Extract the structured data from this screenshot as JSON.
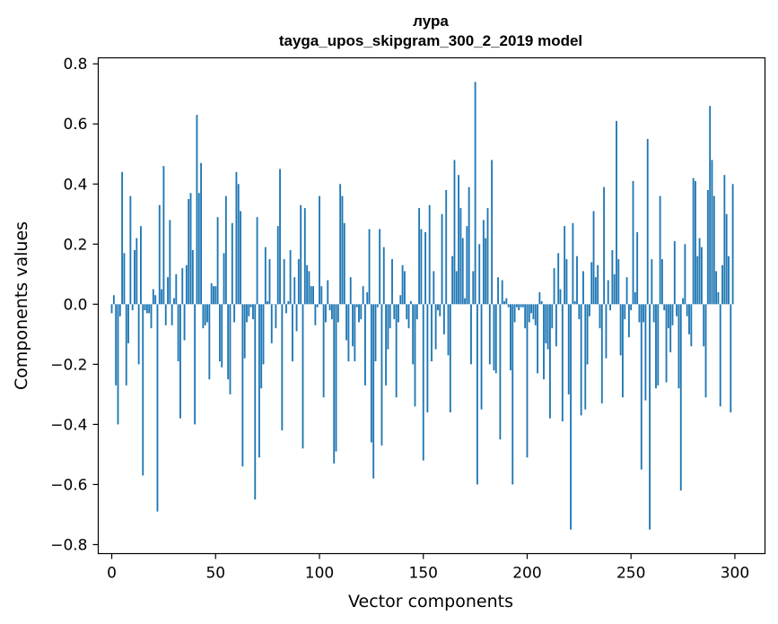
{
  "chart_data": {
    "type": "bar",
    "title": "лура",
    "subtitle": "tayga_upos_skipgram_300_2_2019 model",
    "xlabel": "Vector components",
    "ylabel": "Components values",
    "xlim": [
      -6.5,
      314.5
    ],
    "ylim": [
      -0.83,
      0.82
    ],
    "xticks": [
      0,
      50,
      100,
      150,
      200,
      250,
      300
    ],
    "xtick_labels": [
      "0",
      "50",
      "100",
      "150",
      "200",
      "250",
      "300"
    ],
    "yticks": [
      -0.8,
      -0.6,
      -0.4,
      -0.2,
      0.0,
      0.2,
      0.4,
      0.6,
      0.8
    ],
    "ytick_labels": [
      "−0.8",
      "−0.6",
      "−0.4",
      "−0.2",
      "0.0",
      "0.2",
      "0.4",
      "0.6",
      "0.8"
    ],
    "bar_color": "#1f77b4",
    "values": [
      -0.03,
      0.03,
      -0.27,
      -0.4,
      -0.04,
      0.44,
      0.17,
      -0.27,
      -0.13,
      0.36,
      -0.02,
      0.18,
      0.22,
      -0.2,
      0.26,
      -0.57,
      -0.02,
      -0.03,
      -0.03,
      -0.08,
      0.05,
      0.03,
      -0.69,
      0.33,
      0.05,
      0.46,
      -0.07,
      0.09,
      0.28,
      -0.07,
      0.02,
      0.1,
      -0.19,
      -0.38,
      0.12,
      -0.12,
      0.13,
      0.35,
      0.37,
      0.18,
      -0.4,
      0.63,
      0.37,
      0.47,
      -0.08,
      -0.07,
      -0.06,
      -0.25,
      0.07,
      0.06,
      0.06,
      0.29,
      -0.19,
      -0.21,
      0.17,
      0.36,
      -0.25,
      -0.3,
      0.27,
      -0.06,
      0.44,
      0.4,
      0.31,
      -0.54,
      -0.18,
      -0.06,
      -0.04,
      -0.01,
      -0.05,
      -0.65,
      0.29,
      -0.51,
      -0.28,
      -0.2,
      0.19,
      0.01,
      0.15,
      -0.13,
      0.0,
      -0.08,
      0.26,
      0.45,
      -0.42,
      0.15,
      -0.03,
      0.01,
      0.18,
      -0.19,
      0.09,
      -0.09,
      0.15,
      0.33,
      -0.48,
      0.32,
      0.13,
      0.11,
      0.06,
      0.06,
      -0.07,
      -0.01,
      0.36,
      0.06,
      -0.31,
      -0.06,
      0.08,
      -0.02,
      -0.05,
      -0.53,
      -0.49,
      -0.06,
      0.4,
      0.36,
      0.27,
      -0.12,
      -0.19,
      0.09,
      -0.14,
      -0.19,
      -0.01,
      -0.06,
      -0.05,
      0.06,
      -0.27,
      0.04,
      0.25,
      -0.46,
      -0.58,
      -0.19,
      -0.01,
      0.25,
      -0.47,
      0.19,
      -0.27,
      -0.15,
      -0.08,
      0.15,
      -0.05,
      -0.31,
      -0.06,
      0.03,
      0.13,
      0.11,
      -0.05,
      -0.08,
      0.01,
      -0.2,
      -0.34,
      -0.05,
      0.32,
      0.25,
      -0.52,
      0.24,
      -0.36,
      0.33,
      -0.19,
      0.11,
      -0.15,
      -0.02,
      -0.04,
      0.3,
      -0.1,
      0.38,
      -0.17,
      -0.36,
      0.16,
      0.48,
      0.11,
      0.43,
      0.32,
      0.22,
      0.02,
      0.26,
      0.39,
      -0.2,
      0.11,
      0.74,
      -0.6,
      0.2,
      -0.35,
      0.28,
      0.22,
      0.32,
      -0.2,
      0.48,
      -0.22,
      -0.23,
      0.09,
      -0.45,
      0.08,
      0.01,
      0.02,
      -0.01,
      -0.22,
      -0.6,
      -0.06,
      -0.01,
      -0.02,
      -0.01,
      -0.01,
      -0.08,
      -0.51,
      -0.06,
      -0.03,
      -0.05,
      -0.07,
      -0.23,
      0.04,
      0.01,
      -0.25,
      -0.13,
      -0.15,
      -0.38,
      -0.08,
      0.12,
      -0.14,
      0.17,
      0.05,
      -0.39,
      0.26,
      0.15,
      -0.3,
      -0.75,
      0.27,
      0.01,
      0.16,
      -0.05,
      -0.37,
      0.11,
      -0.35,
      -0.2,
      -0.04,
      0.14,
      0.31,
      0.09,
      0.13,
      -0.08,
      -0.33,
      0.39,
      -0.18,
      0.08,
      -0.02,
      0.18,
      0.1,
      0.61,
      0.15,
      -0.17,
      -0.31,
      -0.05,
      0.09,
      -0.11,
      -0.02,
      0.41,
      0.04,
      0.24,
      -0.06,
      -0.55,
      -0.06,
      -0.32,
      0.55,
      -0.75,
      0.15,
      -0.06,
      -0.28,
      -0.27,
      0.36,
      0.15,
      -0.02,
      -0.26,
      -0.08,
      -0.16,
      -0.07,
      0.21,
      -0.04,
      -0.28,
      -0.62,
      0.02,
      0.2,
      -0.04,
      -0.1,
      -0.14,
      0.42,
      0.41,
      0.16,
      0.22,
      0.19,
      -0.14,
      -0.31,
      0.38,
      0.66,
      0.48,
      0.36,
      0.11,
      0.04,
      -0.34,
      0.13,
      0.43,
      0.3,
      0.16,
      -0.36,
      0.4
    ]
  }
}
